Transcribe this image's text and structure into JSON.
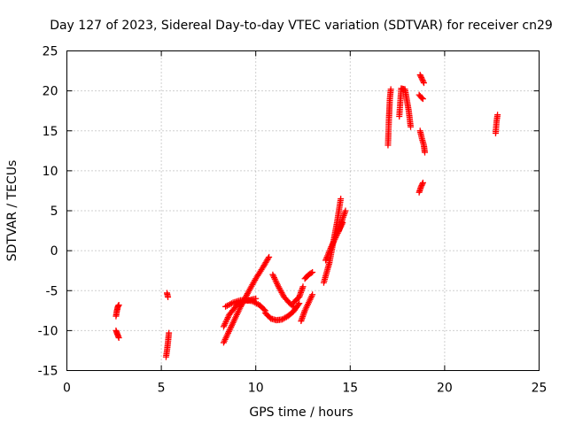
{
  "chart_data": {
    "type": "scatter",
    "title": "Day 127 of 2023, Sidereal Day-to-day VTEC variation (SDTVAR) for receiver cn29",
    "xlabel": "GPS time / hours",
    "ylabel": "SDTVAR / TECUs",
    "xlim": [
      0,
      25
    ],
    "ylim": [
      -15,
      25
    ],
    "xticks": [
      0,
      5,
      10,
      15,
      20,
      25
    ],
    "yticks": [
      -15,
      -10,
      -5,
      0,
      5,
      10,
      15,
      20,
      25
    ],
    "grid": true,
    "marker": "+",
    "color": "#ff0000",
    "segments": [
      {
        "x": [
          2.6,
          2.65,
          2.7,
          2.75
        ],
        "y": [
          -8.2,
          -7.5,
          -7.0,
          -6.8
        ]
      },
      {
        "x": [
          2.6,
          2.65,
          2.7,
          2.75
        ],
        "y": [
          -10.0,
          -10.3,
          -10.6,
          -10.9
        ]
      },
      {
        "x": [
          5.25,
          5.3,
          5.35,
          5.4
        ],
        "y": [
          -13.3,
          -12.5,
          -11.5,
          -10.3
        ]
      },
      {
        "x": [
          5.3,
          5.35
        ],
        "y": [
          -5.3,
          -5.8
        ]
      },
      {
        "x": [
          8.3,
          8.5,
          8.8,
          9.2,
          9.6,
          10.0,
          10.4,
          10.7
        ],
        "y": [
          -11.5,
          -10.5,
          -9.0,
          -7.0,
          -5.2,
          -3.5,
          -2.0,
          -0.8
        ]
      },
      {
        "x": [
          8.3,
          8.6,
          9.0,
          9.4,
          9.8,
          10.2,
          10.5
        ],
        "y": [
          -9.5,
          -8.0,
          -6.8,
          -6.2,
          -6.3,
          -6.8,
          -7.5
        ]
      },
      {
        "x": [
          8.4,
          8.8,
          9.2,
          9.6,
          10.0
        ],
        "y": [
          -7.0,
          -6.5,
          -6.2,
          -6.2,
          -6.0
        ]
      },
      {
        "x": [
          10.5,
          10.8,
          11.1,
          11.4,
          11.7,
          12.0,
          12.3
        ],
        "y": [
          -7.8,
          -8.5,
          -8.7,
          -8.6,
          -8.2,
          -7.6,
          -6.6
        ]
      },
      {
        "x": [
          10.9,
          11.2,
          11.5,
          11.8,
          12.0
        ],
        "y": [
          -3.0,
          -4.5,
          -5.8,
          -6.6,
          -7.0
        ]
      },
      {
        "x": [
          12.0,
          12.3,
          12.5
        ],
        "y": [
          -6.5,
          -5.8,
          -4.5
        ]
      },
      {
        "x": [
          12.4,
          12.6,
          12.8,
          13.0
        ],
        "y": [
          -8.8,
          -7.5,
          -6.5,
          -5.5
        ]
      },
      {
        "x": [
          12.6,
          12.8,
          13.0
        ],
        "y": [
          -3.5,
          -3.0,
          -2.7
        ]
      },
      {
        "x": [
          13.6,
          13.9,
          14.1,
          14.3,
          14.5
        ],
        "y": [
          -4.0,
          -1.5,
          1.0,
          3.5,
          6.5
        ]
      },
      {
        "x": [
          13.7,
          14.0,
          14.3,
          14.6
        ],
        "y": [
          -1.2,
          0.5,
          2.0,
          3.5
        ]
      },
      {
        "x": [
          14.4,
          14.6,
          14.75
        ],
        "y": [
          2.5,
          4.0,
          5.0
        ]
      },
      {
        "x": [
          17.0,
          17.05,
          17.1,
          17.15
        ],
        "y": [
          13.2,
          16.5,
          19.0,
          20.2
        ]
      },
      {
        "x": [
          17.6,
          17.7,
          17.9,
          18.1,
          18.2
        ],
        "y": [
          16.8,
          20.3,
          20.2,
          17.5,
          15.5
        ]
      },
      {
        "x": [
          18.7,
          18.8,
          18.9
        ],
        "y": [
          22.0,
          21.5,
          21.0
        ]
      },
      {
        "x": [
          18.65,
          18.75,
          18.85
        ],
        "y": [
          19.5,
          19.2,
          19.0
        ]
      },
      {
        "x": [
          18.7,
          18.8,
          18.9,
          18.95
        ],
        "y": [
          15.0,
          14.0,
          13.2,
          12.3
        ]
      },
      {
        "x": [
          18.65,
          18.75,
          18.85
        ],
        "y": [
          7.3,
          8.0,
          8.5
        ]
      },
      {
        "x": [
          22.7,
          22.75,
          22.8
        ],
        "y": [
          14.7,
          16.2,
          17.0
        ]
      }
    ]
  }
}
